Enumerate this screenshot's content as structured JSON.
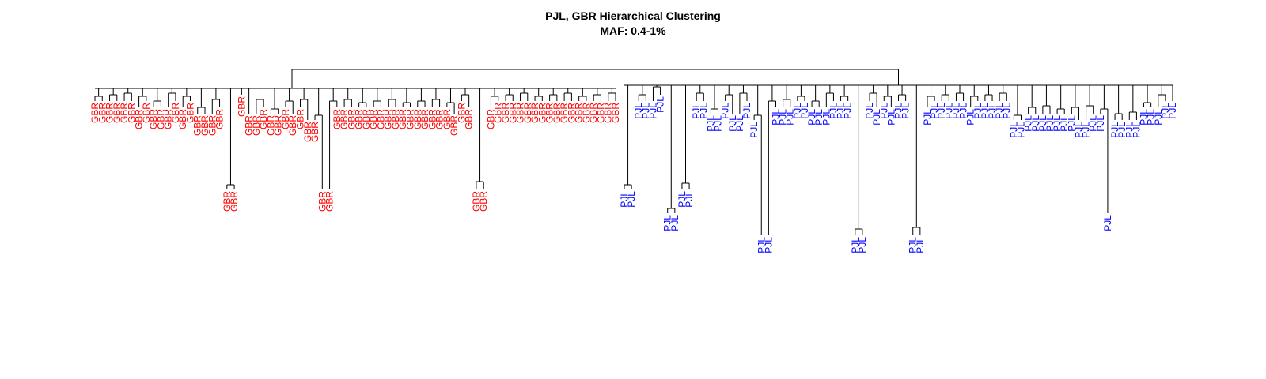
{
  "chart_data": {
    "type": "dendrogram",
    "title": "PJL, GBR Hierarchical Clustering",
    "subtitle": "MAF: 0.4-1%",
    "xlabel": "",
    "ylabel": "",
    "grid": false,
    "group_colors": {
      "GBR": "#ff0000",
      "PJL": "#0000ff"
    },
    "top_merge": [
      "GBR cluster",
      "PJL cluster"
    ],
    "groups": [
      {
        "name": "GBR",
        "color": "#ff0000",
        "leaves": [
          {
            "label": "GBR",
            "depth": 1
          },
          {
            "label": "GBR",
            "depth": 1
          },
          {
            "label": "GBR",
            "depth": 1
          },
          {
            "label": "GBR",
            "depth": 1
          },
          {
            "label": "GBR",
            "depth": 1
          },
          {
            "label": "GBR",
            "depth": 1
          },
          {
            "label": "GBR",
            "depth": 2
          },
          {
            "label": "GBR",
            "depth": 1
          },
          {
            "label": "GBR",
            "depth": 2
          },
          {
            "label": "GBR",
            "depth": 2
          },
          {
            "label": "GBR",
            "depth": 2
          },
          {
            "label": "GBR",
            "depth": 1
          },
          {
            "label": "GBR",
            "depth": 2
          },
          {
            "label": "GBR",
            "depth": 1
          },
          {
            "label": "GBR",
            "depth": 3
          },
          {
            "label": "GBR",
            "depth": 3
          },
          {
            "label": "GBR",
            "depth": 3
          },
          {
            "label": "GBR",
            "depth": 2
          },
          {
            "label": "GBR",
            "depth": 6
          },
          {
            "label": "GBR",
            "depth": 6
          },
          {
            "label": "GBR",
            "depth": 0
          },
          {
            "label": "GBR",
            "depth": 3
          },
          {
            "label": "GBR",
            "depth": 3
          },
          {
            "label": "GBR",
            "depth": 2
          },
          {
            "label": "GBR",
            "depth": 3
          },
          {
            "label": "GBR",
            "depth": 3
          },
          {
            "label": "GBR",
            "depth": 2
          },
          {
            "label": "GBR",
            "depth": 3
          },
          {
            "label": "GBR",
            "depth": 2
          },
          {
            "label": "GBR",
            "depth": 4
          },
          {
            "label": "GBR",
            "depth": 4
          },
          {
            "label": "GBR",
            "depth": 6
          },
          {
            "label": "GBR",
            "depth": 6
          },
          {
            "label": "GBR",
            "depth": 2
          },
          {
            "label": "GBR",
            "depth": 2
          },
          {
            "label": "GBR",
            "depth": 2
          },
          {
            "label": "GBR",
            "depth": 2
          },
          {
            "label": "GBR",
            "depth": 2
          },
          {
            "label": "GBR",
            "depth": 2
          },
          {
            "label": "GBR",
            "depth": 2
          },
          {
            "label": "GBR",
            "depth": 2
          },
          {
            "label": "GBR",
            "depth": 2
          },
          {
            "label": "GBR",
            "depth": 2
          },
          {
            "label": "GBR",
            "depth": 2
          },
          {
            "label": "GBR",
            "depth": 2
          },
          {
            "label": "GBR",
            "depth": 2
          },
          {
            "label": "GBR",
            "depth": 2
          },
          {
            "label": "GBR",
            "depth": 2
          },
          {
            "label": "GBR",
            "depth": 2
          },
          {
            "label": "GBR",
            "depth": 3
          },
          {
            "label": "GBR",
            "depth": 1
          },
          {
            "label": "GBR",
            "depth": 2
          },
          {
            "label": "GBR",
            "depth": 6
          },
          {
            "label": "GBR",
            "depth": 6
          },
          {
            "label": "GBR",
            "depth": 2
          },
          {
            "label": "GBR",
            "depth": 1
          },
          {
            "label": "GBR",
            "depth": 1
          },
          {
            "label": "GBR",
            "depth": 1
          },
          {
            "label": "GBR",
            "depth": 1
          },
          {
            "label": "GBR",
            "depth": 1
          },
          {
            "label": "GBR",
            "depth": 1
          },
          {
            "label": "GBR",
            "depth": 1
          },
          {
            "label": "GBR",
            "depth": 1
          },
          {
            "label": "GBR",
            "depth": 1
          },
          {
            "label": "GBR",
            "depth": 1
          },
          {
            "label": "GBR",
            "depth": 1
          },
          {
            "label": "GBR",
            "depth": 1
          },
          {
            "label": "GBR",
            "depth": 1
          },
          {
            "label": "GBR",
            "depth": 1
          },
          {
            "label": "GBR",
            "depth": 1
          },
          {
            "label": "GBR",
            "depth": 1
          },
          {
            "label": "GBR",
            "depth": 1
          }
        ]
      },
      {
        "name": "PJL",
        "color": "#0000ff",
        "leaves": [
          {
            "label": "PJL",
            "depth": 6
          },
          {
            "label": "PJL",
            "depth": 6
          },
          {
            "label": "PJL",
            "depth": 1
          },
          {
            "label": "PJL",
            "depth": 1
          },
          {
            "label": "PJL",
            "depth": 1
          },
          {
            "label": "PJL",
            "depth": 0
          },
          {
            "label": "PJL",
            "depth": 7
          },
          {
            "label": "PJL",
            "depth": 7
          },
          {
            "label": "PJL",
            "depth": 6
          },
          {
            "label": "PJL",
            "depth": 6
          },
          {
            "label": "PJL",
            "depth": 1
          },
          {
            "label": "PJL",
            "depth": 1
          },
          {
            "label": "PJL",
            "depth": 3
          },
          {
            "label": "PJL",
            "depth": 3
          },
          {
            "label": "PJL",
            "depth": 1
          },
          {
            "label": "PJL",
            "depth": 3
          },
          {
            "label": "PJL",
            "depth": 3
          },
          {
            "label": "PJL",
            "depth": 1
          },
          {
            "label": "PJL",
            "depth": 4
          },
          {
            "label": "PJL",
            "depth": 8
          },
          {
            "label": "PJL",
            "depth": 8
          },
          {
            "label": "PJL",
            "depth": 2
          },
          {
            "label": "PJL",
            "depth": 2
          },
          {
            "label": "PJL",
            "depth": 2
          },
          {
            "label": "PJL",
            "depth": 1
          },
          {
            "label": "PJL",
            "depth": 1
          },
          {
            "label": "PJL",
            "depth": 2
          },
          {
            "label": "PJL",
            "depth": 2
          },
          {
            "label": "PJL",
            "depth": 2
          },
          {
            "label": "PJL",
            "depth": 1
          },
          {
            "label": "PJL",
            "depth": 1
          },
          {
            "label": "PJL",
            "depth": 1
          },
          {
            "label": "PJL",
            "depth": 8
          },
          {
            "label": "PJL",
            "depth": 8
          },
          {
            "label": "PJL",
            "depth": 1
          },
          {
            "label": "PJL",
            "depth": 2
          },
          {
            "label": "PJL",
            "depth": 1
          },
          {
            "label": "PJL",
            "depth": 2
          },
          {
            "label": "PJL",
            "depth": 1
          },
          {
            "label": "PJL",
            "depth": 1
          },
          {
            "label": "PJL",
            "depth": 8
          },
          {
            "label": "PJL",
            "depth": 8
          },
          {
            "label": "PJL",
            "depth": 2
          },
          {
            "label": "PJL",
            "depth": 1
          },
          {
            "label": "PJL",
            "depth": 1
          },
          {
            "label": "PJL",
            "depth": 1
          },
          {
            "label": "PJL",
            "depth": 1
          },
          {
            "label": "PJL",
            "depth": 1
          },
          {
            "label": "PJL",
            "depth": 2
          },
          {
            "label": "PJL",
            "depth": 1
          },
          {
            "label": "PJL",
            "depth": 1
          },
          {
            "label": "PJL",
            "depth": 1
          },
          {
            "label": "PJL",
            "depth": 1
          },
          {
            "label": "PJL",
            "depth": 1
          },
          {
            "label": "PJL",
            "depth": 4
          },
          {
            "label": "PJL",
            "depth": 4
          },
          {
            "label": "PJL",
            "depth": 3
          },
          {
            "label": "PJL",
            "depth": 3
          },
          {
            "label": "PJL",
            "depth": 3
          },
          {
            "label": "PJL",
            "depth": 3
          },
          {
            "label": "PJL",
            "depth": 3
          },
          {
            "label": "PJL",
            "depth": 3
          },
          {
            "label": "PJL",
            "depth": 3
          },
          {
            "label": "PJL",
            "depth": 4
          },
          {
            "label": "PJL",
            "depth": 4
          },
          {
            "label": "PJL",
            "depth": 3
          },
          {
            "label": "PJL",
            "depth": 3
          },
          {
            "label": "PJL",
            "depth": 7
          },
          {
            "label": "PJL",
            "depth": 4
          },
          {
            "label": "PJL",
            "depth": 4
          },
          {
            "label": "PJL",
            "depth": 4
          },
          {
            "label": "PJL",
            "depth": 4
          },
          {
            "label": "PJL",
            "depth": 2
          },
          {
            "label": "PJL",
            "depth": 2
          },
          {
            "label": "PJL",
            "depth": 2
          },
          {
            "label": "PJL",
            "depth": 1
          },
          {
            "label": "PJL",
            "depth": 1
          }
        ]
      }
    ]
  }
}
